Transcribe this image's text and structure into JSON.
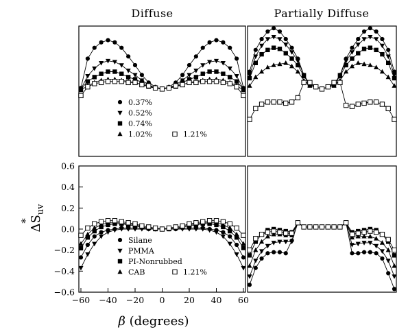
{
  "figure": {
    "column_titles": [
      "Diffuse",
      "Partially Diffuse"
    ],
    "xlabel_symbol": "β",
    "xlabel_text": " (degrees)",
    "ylabel_delta": "ΔS",
    "ylabel_star": "*",
    "ylabel_sub": "uv"
  },
  "chart_data": [
    {
      "type": "line",
      "panel": "top-left",
      "title": "Diffuse",
      "xlim": [
        -60,
        60
      ],
      "ylim": [
        -0.6,
        0.6
      ],
      "ticks_shown": false,
      "legend": {
        "placement": "lower-left",
        "entries": [
          "0.37%",
          "0.52%",
          "0.74%",
          "1.02%",
          "1.21%"
        ]
      },
      "x": [
        -60,
        -55,
        -50,
        -45,
        -40,
        -35,
        -30,
        -25,
        -20,
        -15,
        -10,
        -5,
        0,
        5,
        10,
        15,
        20,
        25,
        30,
        35,
        40,
        45,
        50,
        55,
        60
      ],
      "series": [
        {
          "name": "0.37%",
          "marker": "circle",
          "values": [
            0.03,
            0.3,
            0.4,
            0.45,
            0.47,
            0.45,
            0.4,
            0.32,
            0.24,
            0.15,
            0.08,
            0.04,
            0.02,
            0.04,
            0.08,
            0.15,
            0.24,
            0.32,
            0.4,
            0.45,
            0.47,
            0.45,
            0.4,
            0.3,
            0.03
          ]
        },
        {
          "name": "0.52%",
          "marker": "triangle-down",
          "values": [
            0.02,
            0.14,
            0.21,
            0.26,
            0.28,
            0.27,
            0.24,
            0.19,
            0.15,
            0.1,
            0.06,
            0.03,
            0.02,
            0.03,
            0.06,
            0.1,
            0.15,
            0.19,
            0.24,
            0.27,
            0.28,
            0.26,
            0.21,
            0.14,
            0.02
          ]
        },
        {
          "name": "0.74%",
          "marker": "square-filled",
          "values": [
            0.02,
            0.09,
            0.13,
            0.16,
            0.18,
            0.18,
            0.16,
            0.13,
            0.11,
            0.08,
            0.05,
            0.03,
            0.02,
            0.03,
            0.05,
            0.08,
            0.11,
            0.13,
            0.16,
            0.18,
            0.18,
            0.16,
            0.13,
            0.09,
            0.02
          ]
        },
        {
          "name": "1.02%",
          "marker": "triangle-up",
          "values": [
            0.01,
            0.05,
            0.08,
            0.1,
            0.11,
            0.11,
            0.1,
            0.09,
            0.08,
            0.06,
            0.04,
            0.03,
            0.02,
            0.03,
            0.04,
            0.06,
            0.08,
            0.09,
            0.1,
            0.11,
            0.11,
            0.1,
            0.08,
            0.05,
            0.01
          ]
        },
        {
          "name": "1.21%",
          "marker": "square-open",
          "values": [
            -0.04,
            0.04,
            0.07,
            0.08,
            0.09,
            0.09,
            0.09,
            0.08,
            0.08,
            0.06,
            0.05,
            0.03,
            0.02,
            0.03,
            0.05,
            0.06,
            0.08,
            0.08,
            0.09,
            0.09,
            0.09,
            0.08,
            0.07,
            0.04,
            -0.04
          ]
        }
      ]
    },
    {
      "type": "line",
      "panel": "top-right",
      "title": "Partially Diffuse",
      "xlim": [
        -60,
        60
      ],
      "ylim": [
        -0.6,
        0.6
      ],
      "ticks_shown": false,
      "x": [
        -60,
        -55,
        -50,
        -45,
        -40,
        -35,
        -30,
        -25,
        -20,
        -15,
        -10,
        -5,
        0,
        5,
        10,
        15,
        20,
        25,
        30,
        35,
        40,
        45,
        50,
        55,
        60
      ],
      "series": [
        {
          "name": "0.37%",
          "marker": "circle",
          "values": [
            0.18,
            0.38,
            0.48,
            0.55,
            0.58,
            0.55,
            0.48,
            0.4,
            0.3,
            0.15,
            0.06,
            0.04,
            0.02,
            0.04,
            0.06,
            0.15,
            0.3,
            0.4,
            0.48,
            0.55,
            0.58,
            0.55,
            0.48,
            0.38,
            0.18
          ]
        },
        {
          "name": "0.52%",
          "marker": "triangle-down",
          "values": [
            0.15,
            0.32,
            0.42,
            0.48,
            0.5,
            0.48,
            0.43,
            0.36,
            0.28,
            0.15,
            0.06,
            0.04,
            0.02,
            0.04,
            0.06,
            0.15,
            0.28,
            0.36,
            0.43,
            0.48,
            0.5,
            0.48,
            0.42,
            0.32,
            0.15
          ]
        },
        {
          "name": "0.74%",
          "marker": "square-filled",
          "values": [
            0.12,
            0.26,
            0.34,
            0.38,
            0.4,
            0.39,
            0.35,
            0.3,
            0.24,
            0.14,
            0.06,
            0.04,
            0.02,
            0.04,
            0.06,
            0.14,
            0.24,
            0.3,
            0.35,
            0.39,
            0.4,
            0.38,
            0.34,
            0.26,
            0.12
          ]
        },
        {
          "name": "1.02%",
          "marker": "triangle-up",
          "values": [
            0.05,
            0.13,
            0.18,
            0.22,
            0.24,
            0.25,
            0.26,
            0.23,
            0.18,
            0.1,
            0.05,
            0.04,
            0.02,
            0.04,
            0.05,
            0.1,
            0.18,
            0.23,
            0.26,
            0.25,
            0.24,
            0.22,
            0.18,
            0.13,
            0.05
          ]
        },
        {
          "name": "1.21%",
          "marker": "square-open",
          "values": [
            -0.26,
            -0.16,
            -0.12,
            -0.1,
            -0.1,
            -0.1,
            -0.11,
            -0.1,
            -0.06,
            0.08,
            0.08,
            0.04,
            0.02,
            0.04,
            0.08,
            0.08,
            -0.13,
            -0.14,
            -0.12,
            -0.11,
            -0.1,
            -0.1,
            -0.12,
            -0.16,
            -0.26
          ]
        }
      ]
    },
    {
      "type": "line",
      "panel": "bottom-left",
      "title": "",
      "xlabel": "β (degrees)",
      "ylabel": "ΔS*uv",
      "xlim": [
        -60,
        60
      ],
      "ylim": [
        -0.6,
        0.6
      ],
      "xticks": [
        -60,
        -40,
        -20,
        0,
        20,
        40,
        60
      ],
      "xtick_labels": [
        "−60",
        "−40",
        "−20",
        "0",
        "20",
        "40",
        "60"
      ],
      "yticks": [
        -0.6,
        -0.4,
        -0.2,
        0.0,
        0.2,
        0.4,
        0.6
      ],
      "ytick_labels": [
        "−0.6",
        "−0.4",
        "−0.2",
        "0.0",
        "0.2",
        "0.4",
        "0.6"
      ],
      "legend": {
        "placement": "lower-left",
        "entries": [
          "Silane",
          "PMMA",
          "PI-Nonrubbed",
          "CAB",
          "1.21%"
        ]
      },
      "x": [
        -60,
        -55,
        -50,
        -45,
        -40,
        -35,
        -30,
        -25,
        -20,
        -15,
        -10,
        -5,
        0,
        5,
        10,
        15,
        20,
        25,
        30,
        35,
        40,
        45,
        50,
        55,
        60
      ],
      "series": [
        {
          "name": "Silane",
          "marker": "circle",
          "values": [
            -0.27,
            -0.15,
            -0.07,
            -0.03,
            -0.01,
            0.0,
            0.01,
            0.01,
            0.01,
            0.01,
            0.0,
            0.0,
            0.0,
            0.0,
            0.0,
            0.01,
            0.01,
            0.01,
            0.01,
            0.0,
            -0.01,
            -0.03,
            -0.07,
            -0.15,
            -0.27
          ]
        },
        {
          "name": "PMMA",
          "marker": "triangle-down",
          "values": [
            -0.37,
            -0.24,
            -0.14,
            -0.07,
            -0.03,
            -0.01,
            0.0,
            0.0,
            0.0,
            0.0,
            0.0,
            0.0,
            0.0,
            0.0,
            0.0,
            0.0,
            0.0,
            0.0,
            0.0,
            -0.01,
            -0.03,
            -0.07,
            -0.14,
            -0.24,
            -0.37
          ]
        },
        {
          "name": "PI-Nonrubbed",
          "marker": "square-filled",
          "values": [
            -0.18,
            -0.08,
            -0.02,
            0.02,
            0.04,
            0.05,
            0.05,
            0.04,
            0.03,
            0.02,
            0.01,
            0.0,
            0.0,
            0.0,
            0.01,
            0.02,
            0.03,
            0.04,
            0.05,
            0.05,
            0.04,
            0.02,
            -0.02,
            -0.08,
            -0.18
          ]
        },
        {
          "name": "CAB",
          "marker": "triangle-up",
          "values": [
            -0.14,
            -0.05,
            0.01,
            0.04,
            0.06,
            0.06,
            0.06,
            0.05,
            0.04,
            0.02,
            0.01,
            0.0,
            0.0,
            0.0,
            0.01,
            0.02,
            0.04,
            0.05,
            0.06,
            0.06,
            0.06,
            0.04,
            0.01,
            -0.05,
            -0.14
          ]
        },
        {
          "name": "1.21%",
          "marker": "square-open",
          "values": [
            -0.06,
            0.01,
            0.05,
            0.07,
            0.08,
            0.08,
            0.07,
            0.06,
            0.05,
            0.03,
            0.02,
            0.01,
            0.0,
            0.01,
            0.02,
            0.03,
            0.05,
            0.06,
            0.07,
            0.08,
            0.08,
            0.07,
            0.05,
            0.01,
            -0.06
          ]
        }
      ]
    },
    {
      "type": "line",
      "panel": "bottom-right",
      "title": "",
      "xlim": [
        -60,
        60
      ],
      "ylim": [
        -0.6,
        0.6
      ],
      "ticks_shown": false,
      "x": [
        -60,
        -55,
        -50,
        -45,
        -40,
        -35,
        -30,
        -25,
        -20,
        -15,
        -10,
        -5,
        0,
        5,
        10,
        15,
        20,
        25,
        30,
        35,
        40,
        45,
        50,
        55,
        60
      ],
      "series": [
        {
          "name": "Silane",
          "marker": "circle",
          "values": [
            -0.53,
            -0.37,
            -0.28,
            -0.23,
            -0.22,
            -0.22,
            -0.23,
            -0.11,
            0.06,
            0.02,
            0.02,
            0.02,
            0.02,
            0.02,
            0.02,
            0.02,
            0.06,
            -0.23,
            -0.23,
            -0.22,
            -0.22,
            -0.23,
            -0.28,
            -0.42,
            -0.57
          ]
        },
        {
          "name": "PMMA",
          "marker": "triangle-down",
          "values": [
            -0.45,
            -0.3,
            -0.21,
            -0.16,
            -0.13,
            -0.12,
            -0.12,
            -0.12,
            0.06,
            0.02,
            0.02,
            0.02,
            0.02,
            0.02,
            0.02,
            0.02,
            0.06,
            -0.15,
            -0.14,
            -0.13,
            -0.13,
            -0.16,
            -0.21,
            -0.3,
            -0.45
          ]
        },
        {
          "name": "PI-Nonrubbed",
          "marker": "square-filled",
          "values": [
            -0.25,
            -0.12,
            -0.05,
            -0.01,
            0.0,
            -0.01,
            -0.02,
            -0.03,
            0.06,
            0.02,
            0.02,
            0.02,
            0.02,
            0.02,
            0.02,
            0.02,
            0.06,
            -0.03,
            -0.02,
            -0.01,
            0.0,
            -0.01,
            -0.05,
            -0.12,
            -0.25
          ]
        },
        {
          "name": "CAB",
          "marker": "triangle-up",
          "values": [
            -0.35,
            -0.2,
            -0.12,
            -0.07,
            -0.05,
            -0.05,
            -0.06,
            -0.06,
            0.06,
            0.02,
            0.02,
            0.02,
            0.02,
            0.02,
            0.02,
            0.02,
            0.06,
            -0.08,
            -0.07,
            -0.07,
            -0.07,
            -0.09,
            -0.13,
            -0.2,
            -0.35
          ]
        },
        {
          "name": "1.21%",
          "marker": "square-open",
          "values": [
            -0.2,
            -0.09,
            -0.05,
            -0.03,
            -0.02,
            -0.03,
            -0.04,
            -0.04,
            0.06,
            0.02,
            0.02,
            0.02,
            0.02,
            0.02,
            0.02,
            0.02,
            0.06,
            -0.05,
            -0.04,
            -0.03,
            -0.02,
            -0.03,
            -0.05,
            -0.1,
            -0.2
          ]
        }
      ]
    }
  ]
}
